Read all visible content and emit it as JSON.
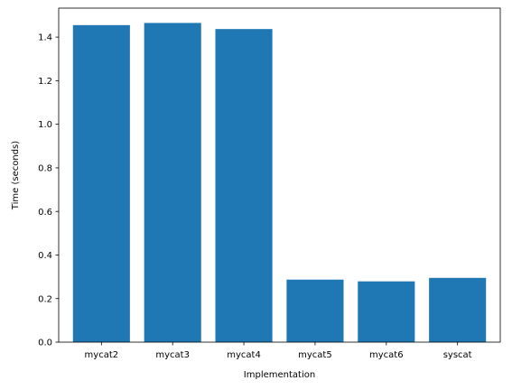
{
  "chart_data": {
    "type": "bar",
    "title": "",
    "xlabel": "Implementation",
    "ylabel": "Time (seconds)",
    "categories": [
      "mycat2",
      "mycat3",
      "mycat4",
      "mycat5",
      "mycat6",
      "syscat"
    ],
    "values": [
      1.455,
      1.465,
      1.437,
      0.287,
      0.279,
      0.295
    ],
    "ylim": [
      0,
      1.533
    ],
    "yticks": [
      "0.0",
      "0.2",
      "0.4",
      "0.6",
      "0.8",
      "1.0",
      "1.2",
      "1.4"
    ],
    "bar_color": "#1f77b4",
    "grid": false,
    "legend": "none"
  }
}
